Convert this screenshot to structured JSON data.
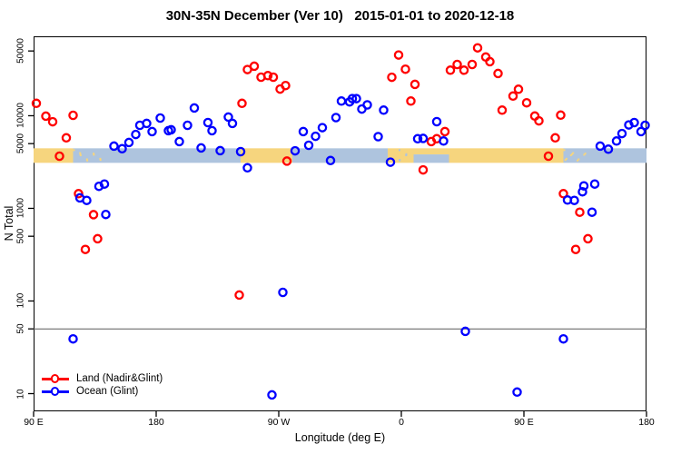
{
  "title": "30N-35N December (Ver 10)   2015-01-01 to 2020-12-18",
  "chart_data": {
    "type": "scatter",
    "title": "30N-35N December (Ver 10)   2015-01-01 to 2020-12-18",
    "xlabel": "Longitude (deg E)",
    "ylabel": "N Total",
    "x_axis": {
      "range": [
        90,
        540
      ],
      "ticks": [
        {
          "pos": 90,
          "label": "90 E"
        },
        {
          "pos": 180,
          "label": "180"
        },
        {
          "pos": 270,
          "label": "90 W"
        },
        {
          "pos": 360,
          "label": "0"
        },
        {
          "pos": 450,
          "label": "90 E"
        },
        {
          "pos": 540,
          "label": "180"
        }
      ]
    },
    "y_axis": {
      "log": true,
      "range": [
        6.44,
        72000
      ],
      "ticks": [
        {
          "value": 50000,
          "label": "50000"
        },
        {
          "value": 10000,
          "label": "10000"
        },
        {
          "value": 5000,
          "label": "5000"
        },
        {
          "value": 1000,
          "label": "1000"
        },
        {
          "value": 500,
          "label": "500"
        },
        {
          "value": 100,
          "label": "100"
        },
        {
          "value": 50,
          "label": "50"
        },
        {
          "value": 10,
          "label": "10"
        }
      ]
    },
    "reference_line": {
      "value": 50,
      "color": "#5a5a5a"
    },
    "map_band": {
      "value_top": 4450,
      "value_bottom": 3100,
      "land_color": "#F6D57E",
      "ocean_color": "#AEC4DE",
      "segments": [
        {
          "from": 90,
          "to": 119,
          "type": "land"
        },
        {
          "from": 119,
          "to": 140,
          "type": "ocean_speckled_land"
        },
        {
          "from": 140,
          "to": 242,
          "type": "ocean"
        },
        {
          "from": 242,
          "to": 280,
          "type": "land"
        },
        {
          "from": 280,
          "to": 350,
          "type": "ocean"
        },
        {
          "from": 350,
          "to": 358,
          "type": "land"
        },
        {
          "from": 358,
          "to": 369,
          "type": "land_speckled_ocean"
        },
        {
          "from": 369,
          "to": 395,
          "type": "ocean_south"
        },
        {
          "from": 395,
          "to": 479,
          "type": "land"
        },
        {
          "from": 479,
          "to": 499,
          "type": "ocean_speckled_land"
        },
        {
          "from": 499,
          "to": 540,
          "type": "ocean"
        }
      ]
    },
    "legend_position": "bottom-left",
    "series": [
      {
        "name": "Land (Nadir&Glint)",
        "color": "#FF0000",
        "points": [
          [
            92,
            13600
          ],
          [
            99,
            9900
          ],
          [
            104,
            8600
          ],
          [
            114,
            5770
          ],
          [
            119,
            10100
          ],
          [
            109,
            3660
          ],
          [
            123,
            1440
          ],
          [
            134,
            855
          ],
          [
            137,
            470
          ],
          [
            128,
            360
          ],
          [
            241,
            116
          ],
          [
            243,
            13600
          ],
          [
            247,
            31500
          ],
          [
            252,
            34300
          ],
          [
            257,
            26100
          ],
          [
            262,
            27100
          ],
          [
            266,
            26100
          ],
          [
            271,
            19400
          ],
          [
            275,
            21200
          ],
          [
            276,
            3240
          ],
          [
            353,
            26000
          ],
          [
            358,
            45200
          ],
          [
            363,
            31800
          ],
          [
            367,
            14400
          ],
          [
            370,
            21800
          ],
          [
            376,
            2600
          ],
          [
            382,
            5260
          ],
          [
            386,
            5640
          ],
          [
            392,
            6740
          ],
          [
            396,
            31000
          ],
          [
            401,
            35800
          ],
          [
            406,
            31000
          ],
          [
            412,
            35800
          ],
          [
            416,
            54000
          ],
          [
            422,
            43000
          ],
          [
            425,
            38400
          ],
          [
            431,
            28600
          ],
          [
            434,
            11500
          ],
          [
            442,
            16300
          ],
          [
            446,
            19300
          ],
          [
            452,
            13800
          ],
          [
            458,
            9930
          ],
          [
            461,
            8800
          ],
          [
            473,
            5770
          ],
          [
            477,
            10160
          ],
          [
            468,
            3660
          ],
          [
            479,
            1440
          ],
          [
            491,
            910
          ],
          [
            497,
            470
          ],
          [
            488,
            360
          ]
        ]
      },
      {
        "name": "Ocean (Glint)",
        "color": "#0000FF",
        "points": [
          [
            119,
            39
          ],
          [
            124,
            1300
          ],
          [
            129,
            1220
          ],
          [
            138,
            1730
          ],
          [
            142,
            1830
          ],
          [
            143,
            860
          ],
          [
            149,
            4700
          ],
          [
            155,
            4400
          ],
          [
            160,
            5140
          ],
          [
            165,
            6280
          ],
          [
            168,
            7890
          ],
          [
            173,
            8270
          ],
          [
            177,
            6740
          ],
          [
            183,
            9450
          ],
          [
            189,
            6900
          ],
          [
            191,
            7050
          ],
          [
            197,
            5260
          ],
          [
            203,
            7890
          ],
          [
            208,
            12140
          ],
          [
            213,
            4490
          ],
          [
            218,
            8440
          ],
          [
            221,
            6900
          ],
          [
            227,
            4200
          ],
          [
            233,
            9670
          ],
          [
            236,
            8270
          ],
          [
            242,
            4100
          ],
          [
            247,
            2740
          ],
          [
            265,
            9.7
          ],
          [
            273,
            124
          ],
          [
            282,
            4180
          ],
          [
            288,
            6740
          ],
          [
            292,
            4800
          ],
          [
            297,
            6000
          ],
          [
            302,
            7440
          ],
          [
            308,
            3280
          ],
          [
            312,
            9550
          ],
          [
            316,
            14400
          ],
          [
            322,
            14100
          ],
          [
            324,
            15300
          ],
          [
            327,
            15300
          ],
          [
            331,
            11800
          ],
          [
            335,
            13100
          ],
          [
            343,
            5950
          ],
          [
            347,
            11500
          ],
          [
            352,
            3150
          ],
          [
            372,
            5640
          ],
          [
            376,
            5700
          ],
          [
            386,
            8620
          ],
          [
            391,
            5330
          ],
          [
            407,
            47
          ],
          [
            445,
            10.4
          ],
          [
            479,
            39
          ],
          [
            482,
            1230
          ],
          [
            487,
            1220
          ],
          [
            493,
            1510
          ],
          [
            494,
            1750
          ],
          [
            502,
            1830
          ],
          [
            500,
            910
          ],
          [
            506,
            4700
          ],
          [
            512,
            4350
          ],
          [
            518,
            5330
          ],
          [
            522,
            6420
          ],
          [
            527,
            7960
          ],
          [
            531,
            8440
          ],
          [
            536,
            6740
          ],
          [
            539,
            7890
          ]
        ]
      }
    ]
  }
}
